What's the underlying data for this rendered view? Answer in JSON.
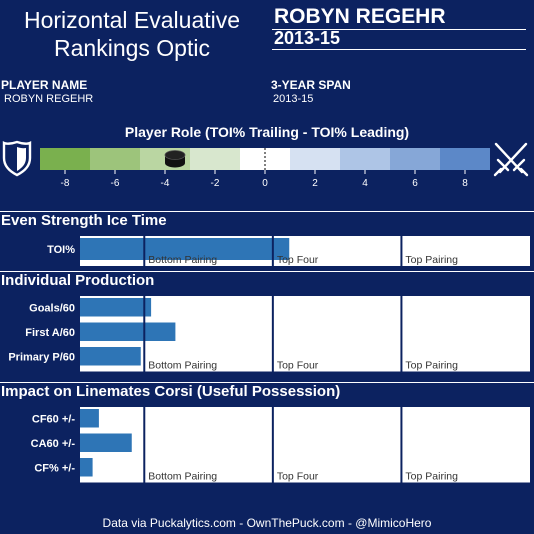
{
  "header": {
    "title_line1": "Horizontal Evaluative",
    "title_line2": "Rankings Optic",
    "player_big": "ROBYN REGEHR",
    "season_big": "2013-15",
    "player_name_label": "PLAYER NAME",
    "player_name_value": "ROBYN REGEHR",
    "span_label": "3-YEAR SPAN",
    "span_value": "2013-15"
  },
  "role": {
    "title": "Player Role (TOI% Trailing - TOI% Leading)",
    "icon_left": "shield-icon",
    "icon_right": "crossed-swords-icon",
    "marker_icon": "hockey-puck-icon",
    "range": [
      -9,
      9
    ],
    "ticks": [
      -8,
      -6,
      -4,
      -2,
      0,
      2,
      4,
      6,
      8
    ],
    "value": -3.6,
    "segment_colors": [
      "#7ab04e",
      "#9dc47b",
      "#bad6a2",
      "#d8e7ce",
      "#ffffff",
      "#d6e1f2",
      "#aec5e6",
      "#86a7d7",
      "#5c88c8"
    ]
  },
  "colors": {
    "background": "#0c2260",
    "bar": "#2e75b6",
    "divider": "#0c2260",
    "panel": "#ffffff"
  },
  "chart_data": [
    {
      "type": "bar",
      "title": "Even Strength Ice Time",
      "categories": [
        "TOI%"
      ],
      "values": [
        0.465
      ],
      "xlim": [
        0,
        1
      ],
      "zone_labels": [
        "Bottom Pairing",
        "Top Four",
        "Top Pairing"
      ]
    },
    {
      "type": "bar",
      "title": "Individual Production",
      "categories": [
        "Goals/60",
        "First A/60",
        "Primary P/60"
      ],
      "values": [
        0.158,
        0.212,
        0.135
      ],
      "xlim": [
        0,
        1
      ],
      "zone_labels": [
        "Bottom Pairing",
        "Top Four",
        "Top Pairing"
      ]
    },
    {
      "type": "bar",
      "title": "Impact on Linemates Corsi (Useful Possession)",
      "categories": [
        "CF60 +/-",
        "CA60 +/-",
        "CF% +/-"
      ],
      "values": [
        0.042,
        0.115,
        0.028
      ],
      "xlim": [
        0,
        1
      ],
      "zone_labels": [
        "Bottom Pairing",
        "Top Four",
        "Top Pairing"
      ]
    }
  ],
  "footer": {
    "credit": "Data via Puckalytics.com - OwnThePuck.com - @MimicoHero"
  }
}
